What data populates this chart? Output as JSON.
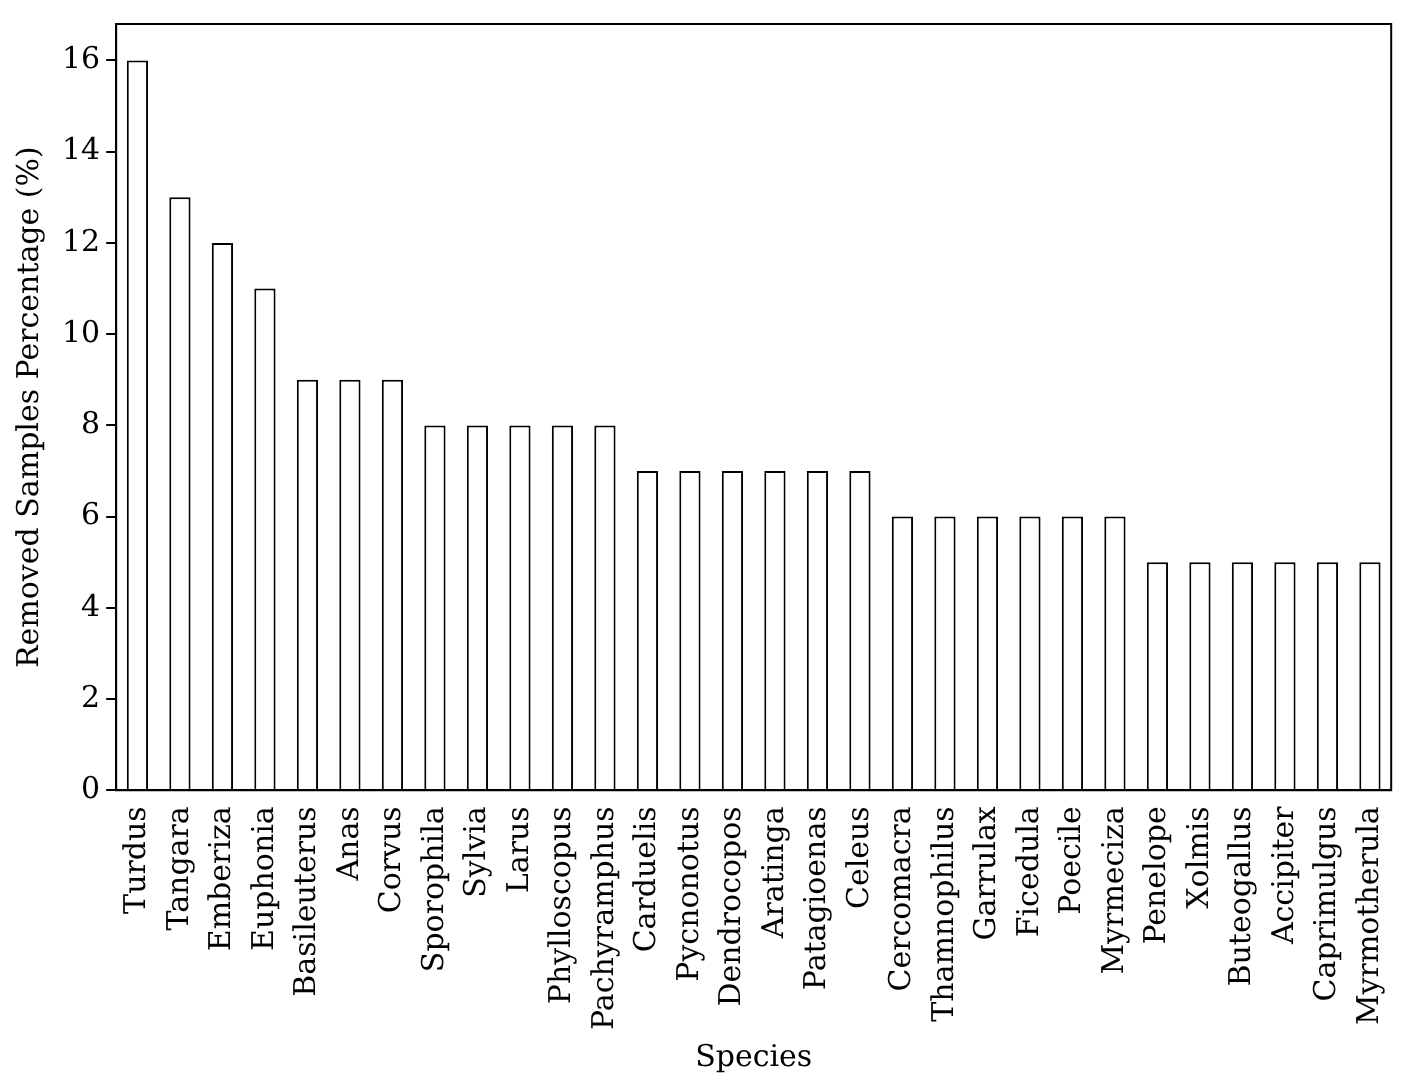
{
  "chart_data": {
    "type": "bar",
    "xlabel": "Species",
    "ylabel": "Removed Samples Percentage (%)",
    "categories": [
      "Turdus",
      "Tangara",
      "Emberiza",
      "Euphonia",
      "Basileuterus",
      "Anas",
      "Corvus",
      "Sporophila",
      "Sylvia",
      "Larus",
      "Phylloscopus",
      "Pachyramphus",
      "Carduelis",
      "Pycnonotus",
      "Dendrocopos",
      "Aratinga",
      "Patagioenas",
      "Celeus",
      "Cercomacra",
      "Thamnophilus",
      "Garrulax",
      "Ficedula",
      "Poecile",
      "Myrmeciza",
      "Penelope",
      "Xolmis",
      "Buteogallus",
      "Accipiter",
      "Caprimulgus",
      "Myrmotherula"
    ],
    "values": [
      16,
      13,
      12,
      11,
      9,
      9,
      9,
      8,
      8,
      8,
      8,
      8,
      7,
      7,
      7,
      7,
      7,
      7,
      6,
      6,
      6,
      6,
      6,
      6,
      5,
      5,
      5,
      5,
      5,
      5
    ],
    "color": "#ffffff",
    "ylim": [
      0,
      16.8
    ],
    "yticks": [
      0,
      2,
      4,
      6,
      8,
      10,
      12,
      14,
      16
    ],
    "grid": false,
    "legend": false
  }
}
